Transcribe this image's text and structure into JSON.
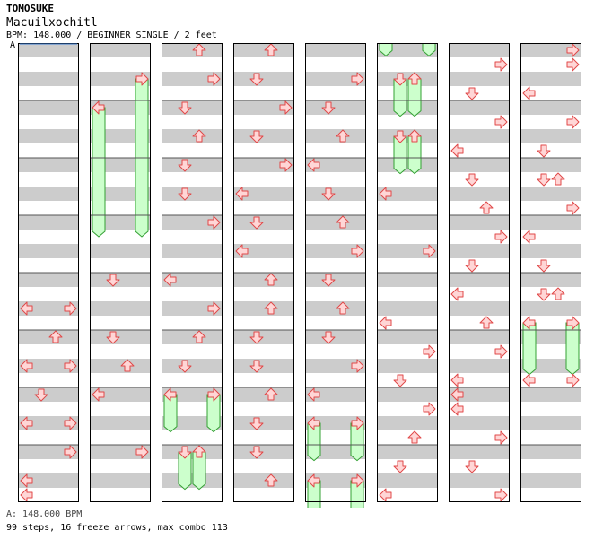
{
  "header": {
    "artist": "TOMOSUKE",
    "title": "Macuilxochitl",
    "info": "BPM: 148.000 / BEGINNER SINGLE / 2 feet",
    "annotation": "A"
  },
  "footer": {
    "bpm_line": "A: 148.000 BPM",
    "stats_line": "99 steps, 16 freeze arrows, max combo 113"
  },
  "colors": {
    "stripe": "#cccccc",
    "arrow_fill": "#ffd6d6",
    "arrow_stroke": "#e04848",
    "freeze_fill": "#ccffcc",
    "freeze_stroke": "#33a033",
    "border": "#000000"
  },
  "chart_data": {
    "type": "step-chart",
    "columns": 8,
    "rows_per_column": 32,
    "lanes": [
      "left",
      "down",
      "up",
      "right"
    ],
    "notes": [
      {
        "col": 0,
        "row": 18,
        "lane": "left"
      },
      {
        "col": 0,
        "row": 18,
        "lane": "right"
      },
      {
        "col": 0,
        "row": 20,
        "lane": "up"
      },
      {
        "col": 0,
        "row": 22,
        "lane": "left"
      },
      {
        "col": 0,
        "row": 22,
        "lane": "right"
      },
      {
        "col": 0,
        "row": 24,
        "lane": "down"
      },
      {
        "col": 0,
        "row": 26,
        "lane": "left"
      },
      {
        "col": 0,
        "row": 26,
        "lane": "right"
      },
      {
        "col": 0,
        "row": 28,
        "lane": "right"
      },
      {
        "col": 0,
        "row": 30,
        "lane": "left"
      },
      {
        "col": 0,
        "row": 31,
        "lane": "left"
      },
      {
        "col": 1,
        "row": 16,
        "lane": "down"
      },
      {
        "col": 1,
        "row": 20,
        "lane": "down"
      },
      {
        "col": 1,
        "row": 22,
        "lane": "up"
      },
      {
        "col": 1,
        "row": 24,
        "lane": "left"
      },
      {
        "col": 1,
        "row": 28,
        "lane": "right"
      },
      {
        "col": 2,
        "row": 0,
        "lane": "up"
      },
      {
        "col": 2,
        "row": 2,
        "lane": "right"
      },
      {
        "col": 2,
        "row": 4,
        "lane": "down"
      },
      {
        "col": 2,
        "row": 6,
        "lane": "up"
      },
      {
        "col": 2,
        "row": 8,
        "lane": "down"
      },
      {
        "col": 2,
        "row": 10,
        "lane": "down"
      },
      {
        "col": 2,
        "row": 12,
        "lane": "right"
      },
      {
        "col": 2,
        "row": 16,
        "lane": "left"
      },
      {
        "col": 2,
        "row": 18,
        "lane": "right"
      },
      {
        "col": 2,
        "row": 20,
        "lane": "up"
      },
      {
        "col": 2,
        "row": 22,
        "lane": "down"
      },
      {
        "col": 3,
        "row": 0,
        "lane": "up"
      },
      {
        "col": 3,
        "row": 2,
        "lane": "down"
      },
      {
        "col": 3,
        "row": 4,
        "lane": "right"
      },
      {
        "col": 3,
        "row": 6,
        "lane": "down"
      },
      {
        "col": 3,
        "row": 8,
        "lane": "right"
      },
      {
        "col": 3,
        "row": 10,
        "lane": "left"
      },
      {
        "col": 3,
        "row": 12,
        "lane": "down"
      },
      {
        "col": 3,
        "row": 14,
        "lane": "left"
      },
      {
        "col": 3,
        "row": 16,
        "lane": "up"
      },
      {
        "col": 3,
        "row": 18,
        "lane": "up"
      },
      {
        "col": 3,
        "row": 20,
        "lane": "down"
      },
      {
        "col": 3,
        "row": 22,
        "lane": "down"
      },
      {
        "col": 3,
        "row": 24,
        "lane": "up"
      },
      {
        "col": 3,
        "row": 26,
        "lane": "down"
      },
      {
        "col": 3,
        "row": 28,
        "lane": "down"
      },
      {
        "col": 3,
        "row": 30,
        "lane": "up"
      },
      {
        "col": 4,
        "row": 2,
        "lane": "right"
      },
      {
        "col": 4,
        "row": 4,
        "lane": "down"
      },
      {
        "col": 4,
        "row": 6,
        "lane": "up"
      },
      {
        "col": 4,
        "row": 8,
        "lane": "left"
      },
      {
        "col": 4,
        "row": 10,
        "lane": "down"
      },
      {
        "col": 4,
        "row": 12,
        "lane": "up"
      },
      {
        "col": 4,
        "row": 14,
        "lane": "right"
      },
      {
        "col": 4,
        "row": 16,
        "lane": "down"
      },
      {
        "col": 4,
        "row": 18,
        "lane": "up"
      },
      {
        "col": 4,
        "row": 20,
        "lane": "down"
      },
      {
        "col": 4,
        "row": 22,
        "lane": "right"
      },
      {
        "col": 4,
        "row": 24,
        "lane": "left"
      },
      {
        "col": 5,
        "row": 10,
        "lane": "left"
      },
      {
        "col": 5,
        "row": 14,
        "lane": "right"
      },
      {
        "col": 5,
        "row": 19,
        "lane": "left"
      },
      {
        "col": 5,
        "row": 21,
        "lane": "right"
      },
      {
        "col": 5,
        "row": 23,
        "lane": "down"
      },
      {
        "col": 5,
        "row": 25,
        "lane": "right"
      },
      {
        "col": 5,
        "row": 27,
        "lane": "up"
      },
      {
        "col": 5,
        "row": 29,
        "lane": "down"
      },
      {
        "col": 5,
        "row": 31,
        "lane": "left"
      },
      {
        "col": 6,
        "row": 1,
        "lane": "right"
      },
      {
        "col": 6,
        "row": 3,
        "lane": "down"
      },
      {
        "col": 6,
        "row": 5,
        "lane": "right"
      },
      {
        "col": 6,
        "row": 7,
        "lane": "left"
      },
      {
        "col": 6,
        "row": 9,
        "lane": "down"
      },
      {
        "col": 6,
        "row": 11,
        "lane": "up"
      },
      {
        "col": 6,
        "row": 13,
        "lane": "right"
      },
      {
        "col": 6,
        "row": 15,
        "lane": "down"
      },
      {
        "col": 6,
        "row": 17,
        "lane": "left"
      },
      {
        "col": 6,
        "row": 19,
        "lane": "up"
      },
      {
        "col": 6,
        "row": 21,
        "lane": "right"
      },
      {
        "col": 6,
        "row": 23,
        "lane": "left"
      },
      {
        "col": 6,
        "row": 24,
        "lane": "left"
      },
      {
        "col": 6,
        "row": 25,
        "lane": "left"
      },
      {
        "col": 6,
        "row": 27,
        "lane": "right"
      },
      {
        "col": 6,
        "row": 29,
        "lane": "down"
      },
      {
        "col": 6,
        "row": 31,
        "lane": "right"
      },
      {
        "col": 7,
        "row": 0,
        "lane": "right"
      },
      {
        "col": 7,
        "row": 1,
        "lane": "right"
      },
      {
        "col": 7,
        "row": 3,
        "lane": "left"
      },
      {
        "col": 7,
        "row": 5,
        "lane": "right"
      },
      {
        "col": 7,
        "row": 7,
        "lane": "down"
      },
      {
        "col": 7,
        "row": 9,
        "lane": "down"
      },
      {
        "col": 7,
        "row": 9,
        "lane": "up"
      },
      {
        "col": 7,
        "row": 11,
        "lane": "right"
      },
      {
        "col": 7,
        "row": 13,
        "lane": "left"
      },
      {
        "col": 7,
        "row": 15,
        "lane": "down"
      },
      {
        "col": 7,
        "row": 17,
        "lane": "down"
      },
      {
        "col": 7,
        "row": 17,
        "lane": "up"
      },
      {
        "col": 7,
        "row": 23,
        "lane": "left"
      },
      {
        "col": 7,
        "row": 23,
        "lane": "right"
      }
    ],
    "freezes": [
      {
        "col": 1,
        "start": 4,
        "end": 13,
        "lane": "left"
      },
      {
        "col": 1,
        "start": 2,
        "end": 13,
        "lane": "right"
      },
      {
        "col": 2,
        "start": 24,
        "end": 26.6,
        "lane": "left"
      },
      {
        "col": 2,
        "start": 24,
        "end": 26.6,
        "lane": "right"
      },
      {
        "col": 2,
        "start": 28,
        "end": 30.6,
        "lane": "down"
      },
      {
        "col": 2,
        "start": 28,
        "end": 30.6,
        "lane": "up"
      },
      {
        "col": 4,
        "start": 26,
        "end": 28.6,
        "lane": "left"
      },
      {
        "col": 4,
        "start": 26,
        "end": 28.6,
        "lane": "right"
      },
      {
        "col": 4,
        "start": 30,
        "end": 32.4,
        "lane": "left"
      },
      {
        "col": 4,
        "start": 30,
        "end": 32.4,
        "lane": "right"
      },
      {
        "col": 5,
        "start": -0.6,
        "end": 0.4,
        "lane": "left"
      },
      {
        "col": 5,
        "start": -0.6,
        "end": 0.4,
        "lane": "right"
      },
      {
        "col": 5,
        "start": 2,
        "end": 4.6,
        "lane": "down"
      },
      {
        "col": 5,
        "start": 2,
        "end": 4.6,
        "lane": "up"
      },
      {
        "col": 5,
        "start": 6,
        "end": 8.6,
        "lane": "down"
      },
      {
        "col": 5,
        "start": 6,
        "end": 8.6,
        "lane": "up"
      },
      {
        "col": 7,
        "start": 19,
        "end": 22.6,
        "lane": "left"
      },
      {
        "col": 7,
        "start": 19,
        "end": 22.6,
        "lane": "right"
      }
    ]
  }
}
